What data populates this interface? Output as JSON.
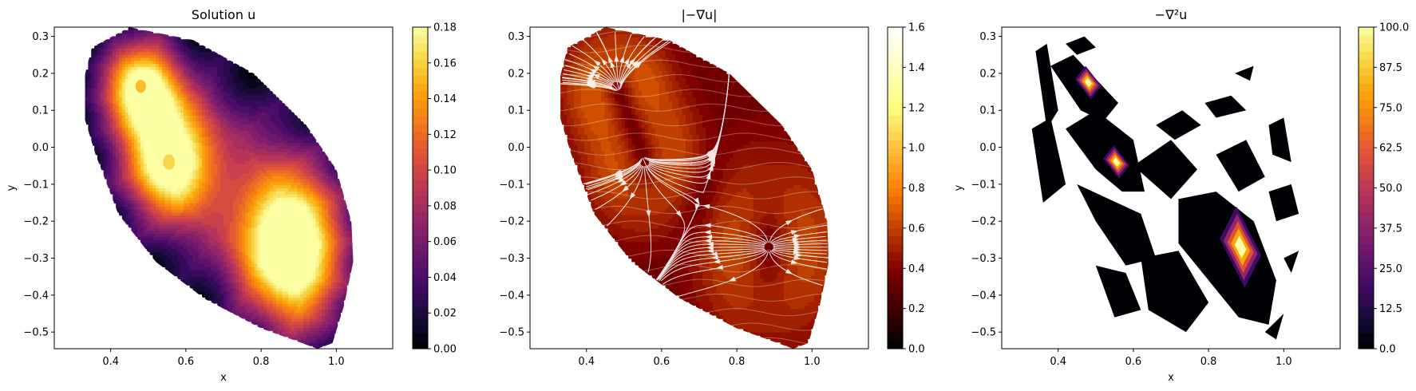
{
  "chart_data": [
    {
      "type": "heatmap",
      "subtype": "filled-contour",
      "title": "Solution u",
      "xlabel": "x",
      "ylabel": "y",
      "xlim": [
        0.25,
        1.15
      ],
      "ylim": [
        -0.545,
        0.325
      ],
      "xticks": [
        0.4,
        0.6,
        0.8,
        1.0
      ],
      "xtick_labels": [
        "0.4",
        "0.6",
        "0.8",
        "1.0"
      ],
      "yticks": [
        0.3,
        0.2,
        0.1,
        0.0,
        -0.1,
        -0.2,
        -0.3,
        -0.4,
        -0.5
      ],
      "ytick_labels": [
        "0.3",
        "0.2",
        "0.1",
        "0.0",
        "−0.1",
        "−0.2",
        "−0.3",
        "−0.4",
        "−0.5"
      ],
      "colormap": "inferno",
      "colorbar": {
        "min": 0.0,
        "max": 0.18,
        "ticks": [
          0.0,
          0.02,
          0.04,
          0.06,
          0.08,
          0.1,
          0.12,
          0.14,
          0.16,
          0.18
        ],
        "tick_labels": [
          "0.00",
          "0.02",
          "0.04",
          "0.06",
          "0.08",
          "0.10",
          "0.12",
          "0.14",
          "0.16",
          "0.18"
        ]
      },
      "domain_boundary": [
        [
          0.35,
          0.27
        ],
        [
          0.45,
          0.325
        ],
        [
          0.62,
          0.29
        ],
        [
          0.78,
          0.2
        ],
        [
          0.92,
          0.06
        ],
        [
          1.0,
          -0.06
        ],
        [
          1.04,
          -0.2
        ],
        [
          1.045,
          -0.31
        ],
        [
          1.02,
          -0.43
        ],
        [
          0.99,
          -0.53
        ],
        [
          0.95,
          -0.545
        ],
        [
          0.8,
          -0.49
        ],
        [
          0.65,
          -0.41
        ],
        [
          0.52,
          -0.31
        ],
        [
          0.42,
          -0.18
        ],
        [
          0.36,
          -0.02
        ],
        [
          0.33,
          0.08
        ],
        [
          0.33,
          0.19
        ]
      ],
      "peaks": [
        {
          "x": 0.48,
          "y": 0.165,
          "value": 0.15,
          "rx": 0.04,
          "ry": 0.05
        },
        {
          "x": 0.555,
          "y": -0.04,
          "value": 0.16,
          "rx": 0.045,
          "ry": 0.06
        },
        {
          "x": 0.885,
          "y": -0.27,
          "value": 0.185,
          "rx": 0.055,
          "ry": 0.085
        }
      ]
    },
    {
      "type": "heatmap",
      "subtype": "filled-contour-with-streamlines",
      "title": "|−∇u|",
      "xlabel": "",
      "ylabel": "",
      "xlim": [
        0.25,
        1.15
      ],
      "ylim": [
        -0.545,
        0.325
      ],
      "xticks": [
        0.4,
        0.6,
        0.8,
        1.0
      ],
      "xtick_labels": [
        "0.4",
        "0.6",
        "0.8",
        "1.0"
      ],
      "yticks": [
        0.3,
        0.2,
        0.1,
        0.0,
        -0.1,
        -0.2,
        -0.3,
        -0.4,
        -0.5
      ],
      "ytick_labels": [
        "0.3",
        "0.2",
        "0.1",
        "0.0",
        "−0.1",
        "−0.2",
        "−0.3",
        "−0.4",
        "−0.5"
      ],
      "colormap": "afmhot",
      "colorbar": {
        "min": 0.0,
        "max": 1.6,
        "ticks": [
          0.0,
          0.2,
          0.4,
          0.6,
          0.8,
          1.0,
          1.2,
          1.4,
          1.6
        ],
        "tick_labels": [
          "0.0",
          "0.2",
          "0.4",
          "0.6",
          "0.8",
          "1.0",
          "1.2",
          "1.4",
          "1.6"
        ]
      },
      "sources": [
        {
          "x": 0.48,
          "y": 0.165
        },
        {
          "x": 0.555,
          "y": -0.04
        },
        {
          "x": 0.885,
          "y": -0.27
        }
      ],
      "streamline_color": "#ffffff"
    },
    {
      "type": "heatmap",
      "subtype": "filled-contour",
      "title": "−∇²u",
      "xlabel": "x",
      "ylabel": "y",
      "xlim": [
        0.25,
        1.15
      ],
      "ylim": [
        -0.545,
        0.325
      ],
      "xticks": [
        0.4,
        0.6,
        0.8,
        1.0
      ],
      "xtick_labels": [
        "0.4",
        "0.6",
        "0.8",
        "1.0"
      ],
      "yticks": [
        0.3,
        0.2,
        0.1,
        0.0,
        -0.1,
        -0.2,
        -0.3,
        -0.4,
        -0.5
      ],
      "ytick_labels": [
        "0.3",
        "0.2",
        "0.1",
        "0.0",
        "−0.1",
        "−0.2",
        "−0.3",
        "−0.4",
        "−0.5"
      ],
      "colormap": "inferno",
      "colorbar": {
        "min": 0.0,
        "max": 100.0,
        "ticks": [
          0.0,
          12.5,
          25.0,
          37.5,
          50.0,
          62.5,
          75.0,
          87.5,
          100.0
        ],
        "tick_labels": [
          "0.0",
          "12.5",
          "25.0",
          "37.5",
          "50.0",
          "62.5",
          "75.0",
          "87.5",
          "100.0"
        ]
      },
      "patches": [
        [
          [
            0.34,
            0.26
          ],
          [
            0.37,
            0.28
          ],
          [
            0.4,
            0.1
          ],
          [
            0.37,
            0.05
          ]
        ],
        [
          [
            0.42,
            0.28
          ],
          [
            0.47,
            0.3
          ],
          [
            0.5,
            0.27
          ],
          [
            0.45,
            0.25
          ]
        ],
        [
          [
            0.38,
            0.22
          ],
          [
            0.44,
            0.25
          ],
          [
            0.56,
            0.12
          ],
          [
            0.52,
            0.07
          ],
          [
            0.46,
            0.1
          ]
        ],
        [
          [
            0.42,
            0.05
          ],
          [
            0.5,
            0.1
          ],
          [
            0.6,
            0.02
          ],
          [
            0.63,
            -0.12
          ],
          [
            0.57,
            -0.12
          ],
          [
            0.5,
            -0.06
          ]
        ],
        [
          [
            0.33,
            0.05
          ],
          [
            0.38,
            0.08
          ],
          [
            0.42,
            -0.1
          ],
          [
            0.36,
            -0.15
          ]
        ],
        [
          [
            0.45,
            -0.1
          ],
          [
            0.62,
            -0.18
          ],
          [
            0.66,
            -0.3
          ],
          [
            0.58,
            -0.32
          ],
          [
            0.5,
            -0.2
          ]
        ],
        [
          [
            0.6,
            -0.05
          ],
          [
            0.7,
            0.02
          ],
          [
            0.77,
            -0.06
          ],
          [
            0.7,
            -0.14
          ]
        ],
        [
          [
            0.66,
            0.06
          ],
          [
            0.73,
            0.1
          ],
          [
            0.78,
            0.06
          ],
          [
            0.71,
            0.02
          ]
        ],
        [
          [
            0.79,
            0.12
          ],
          [
            0.86,
            0.14
          ],
          [
            0.9,
            0.1
          ],
          [
            0.82,
            0.08
          ]
        ],
        [
          [
            0.82,
            -0.02
          ],
          [
            0.9,
            0.02
          ],
          [
            0.95,
            -0.08
          ],
          [
            0.88,
            -0.12
          ]
        ],
        [
          [
            0.96,
            0.06
          ],
          [
            1.0,
            0.08
          ],
          [
            1.02,
            -0.04
          ],
          [
            0.97,
            -0.02
          ]
        ],
        [
          [
            0.72,
            -0.14
          ],
          [
            0.82,
            -0.12
          ],
          [
            0.92,
            -0.2
          ],
          [
            0.98,
            -0.36
          ],
          [
            0.96,
            -0.48
          ],
          [
            0.88,
            -0.46
          ],
          [
            0.8,
            -0.36
          ],
          [
            0.72,
            -0.26
          ]
        ],
        [
          [
            0.62,
            -0.3
          ],
          [
            0.72,
            -0.28
          ],
          [
            0.8,
            -0.42
          ],
          [
            0.74,
            -0.5
          ],
          [
            0.64,
            -0.44
          ]
        ],
        [
          [
            0.5,
            -0.32
          ],
          [
            0.58,
            -0.34
          ],
          [
            0.62,
            -0.44
          ],
          [
            0.55,
            -0.46
          ]
        ],
        [
          [
            0.96,
            -0.12
          ],
          [
            1.02,
            -0.1
          ],
          [
            1.04,
            -0.18
          ],
          [
            0.98,
            -0.2
          ]
        ],
        [
          [
            1.0,
            -0.3
          ],
          [
            1.04,
            -0.28
          ],
          [
            1.02,
            -0.34
          ]
        ],
        [
          [
            0.95,
            -0.5
          ],
          [
            1.0,
            -0.45
          ],
          [
            0.98,
            -0.52
          ]
        ],
        [
          [
            0.87,
            0.2
          ],
          [
            0.92,
            0.22
          ],
          [
            0.91,
            0.18
          ]
        ]
      ],
      "peaks": [
        {
          "x": 0.48,
          "y": 0.175,
          "value": 100
        },
        {
          "x": 0.555,
          "y": -0.04,
          "value": 100
        },
        {
          "x": 0.885,
          "y": -0.27,
          "value": 100
        }
      ]
    }
  ]
}
